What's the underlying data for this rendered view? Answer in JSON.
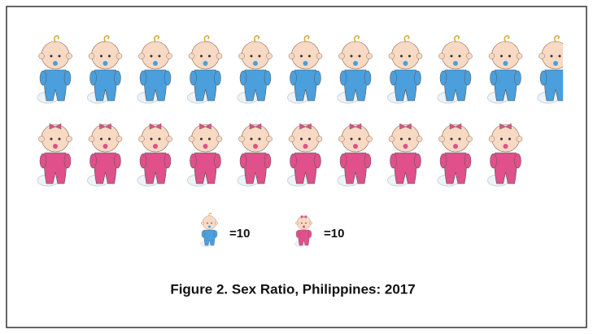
{
  "chart_data": {
    "type": "pictograph",
    "title": "Figure 2. Sex Ratio, Philippines: 2017",
    "series": [
      {
        "color": "#4a9fdc",
        "values": [
          107
        ]
      },
      {
        "color": "#e0508a",
        "values": [
          100
        ]
      }
    ],
    "legend": [
      {
        "value": 10,
        "label": "=10"
      },
      {
        "value": 10,
        "label": "=10"
      }
    ]
  }
}
